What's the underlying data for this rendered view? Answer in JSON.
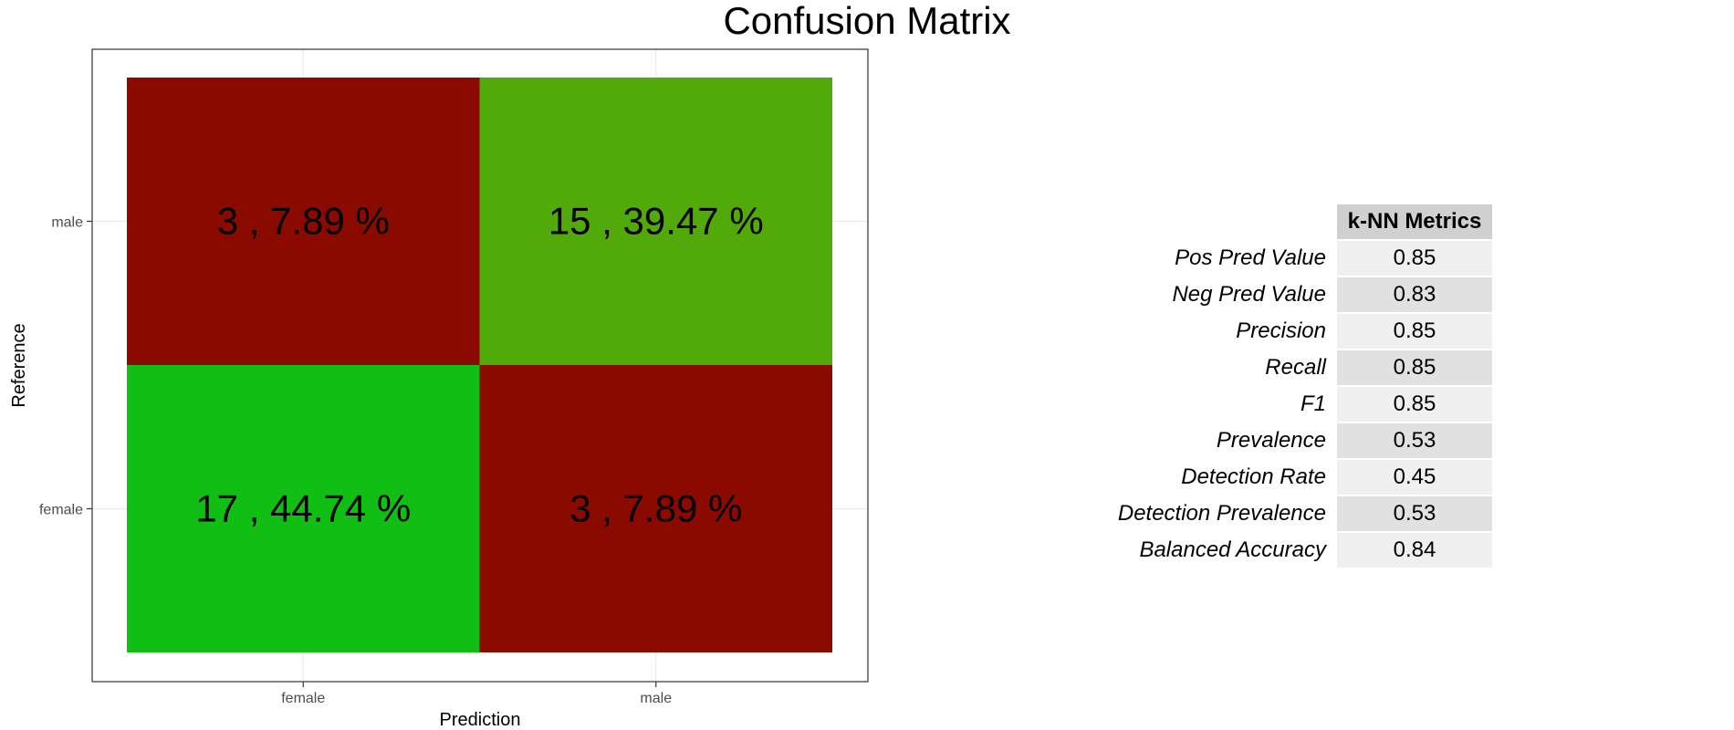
{
  "chart_data": [
    {
      "type": "heatmap",
      "title": "Confusion Matrix",
      "xlabel": "Prediction",
      "ylabel": "Reference",
      "x_categories": [
        "female",
        "male"
      ],
      "y_categories": [
        "female",
        "male"
      ],
      "cells": [
        {
          "x": "female",
          "y": "male",
          "count": 3,
          "label": "3 , 7.89 %",
          "color": "#8b0a00"
        },
        {
          "x": "male",
          "y": "male",
          "count": 15,
          "label": "15 , 39.47 %",
          "color": "#52a90a"
        },
        {
          "x": "female",
          "y": "female",
          "count": 17,
          "label": "17 , 44.74 %",
          "color": "#10be14"
        },
        {
          "x": "male",
          "y": "female",
          "count": 3,
          "label": "3 , 7.89 %",
          "color": "#8b0a00"
        }
      ],
      "grid": true
    },
    {
      "type": "table",
      "header": "k-NN Metrics",
      "rows": [
        {
          "label": "Pos Pred Value",
          "value": "0.85"
        },
        {
          "label": "Neg Pred Value",
          "value": "0.83"
        },
        {
          "label": "Precision",
          "value": "0.85"
        },
        {
          "label": "Recall",
          "value": "0.85"
        },
        {
          "label": "F1",
          "value": "0.85"
        },
        {
          "label": "Prevalence",
          "value": "0.53"
        },
        {
          "label": "Detection Rate",
          "value": "0.45"
        },
        {
          "label": "Detection Prevalence",
          "value": "0.53"
        },
        {
          "label": "Balanced Accuracy",
          "value": "0.84"
        }
      ],
      "colors": {
        "header": "#d0d0d0",
        "row_light": "#f0f0f0",
        "row_dark": "#e1e1e1"
      }
    }
  ]
}
